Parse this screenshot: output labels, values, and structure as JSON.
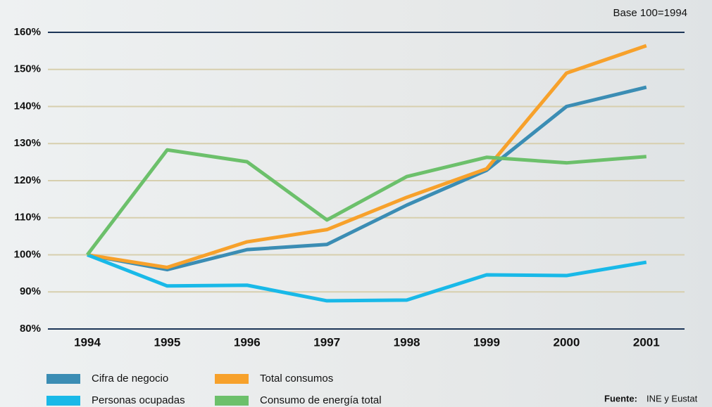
{
  "chart_data": {
    "type": "line",
    "annotation": "Base 100=1994",
    "source_label": "Fuente:",
    "source": "INE y Eustat",
    "categories": [
      "1994",
      "1995",
      "1996",
      "1997",
      "1998",
      "1999",
      "2000",
      "2001"
    ],
    "series": [
      {
        "name": "Cifra de negocio",
        "color": "#3b8db4",
        "values": [
          100,
          96,
          101.4,
          102.8,
          113.4,
          122.8,
          140,
          145.2
        ]
      },
      {
        "name": "Total consumos",
        "color": "#f7a12b",
        "values": [
          100,
          96.6,
          103.5,
          106.8,
          115.5,
          123.2,
          149,
          156.4
        ]
      },
      {
        "name": "Personas ocupadas",
        "color": "#19b9e8",
        "values": [
          100,
          91.6,
          91.8,
          87.6,
          87.8,
          94.6,
          94.4,
          98
        ]
      },
      {
        "name": "Consumo de energía total",
        "color": "#6cc06b",
        "values": [
          100,
          128.3,
          125.1,
          109.4,
          121.1,
          126.3,
          124.8,
          126.5
        ]
      }
    ],
    "ylim": [
      80,
      160
    ],
    "yticks": [
      {
        "value": 80,
        "label": "80%"
      },
      {
        "value": 90,
        "label": "90%"
      },
      {
        "value": 100,
        "label": "100%"
      },
      {
        "value": 110,
        "label": "110%"
      },
      {
        "value": 120,
        "label": "120%"
      },
      {
        "value": 130,
        "label": "130%"
      },
      {
        "value": 140,
        "label": "140%"
      },
      {
        "value": 150,
        "label": "150%"
      },
      {
        "value": 160,
        "label": "160%"
      }
    ],
    "grid": true
  }
}
